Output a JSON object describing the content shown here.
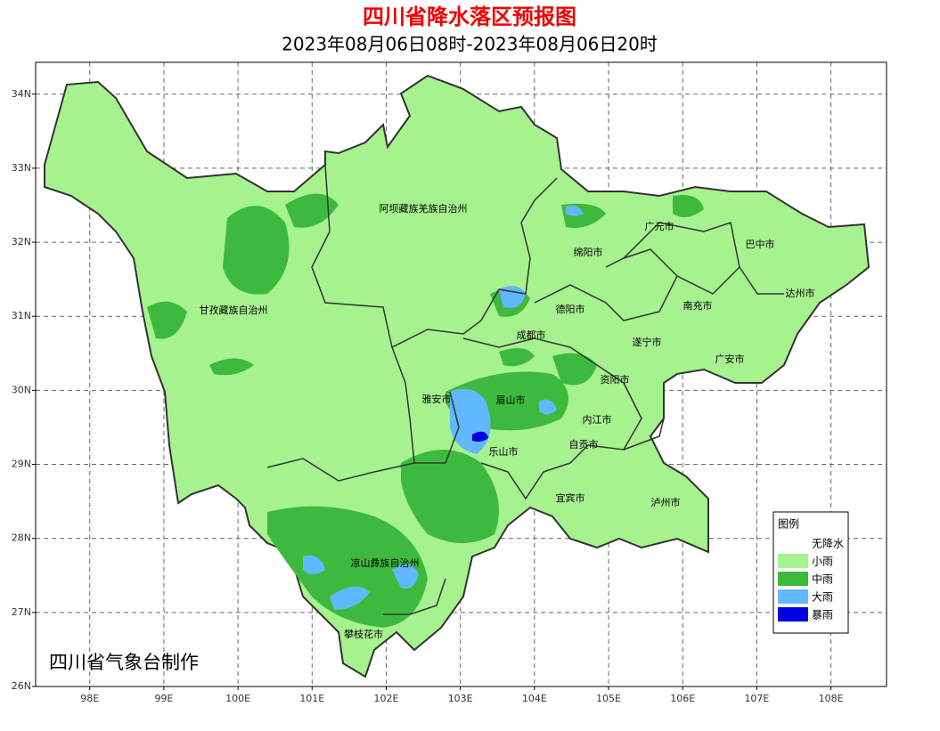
{
  "header": {
    "title": "四川省降水落区预报图",
    "subtitle": "2023年08月06日08时-2023年08月06日20时"
  },
  "map": {
    "xlim": [
      97.27,
      108.75
    ],
    "ylim": [
      26,
      34.43
    ],
    "grid": true,
    "xticks": [
      {
        "value": 98,
        "label": "98E"
      },
      {
        "value": 99,
        "label": "99E"
      },
      {
        "value": 100,
        "label": "100E"
      },
      {
        "value": 101,
        "label": "101E"
      },
      {
        "value": 102,
        "label": "102E"
      },
      {
        "value": 103,
        "label": "103E"
      },
      {
        "value": 104,
        "label": "104E"
      },
      {
        "value": 105,
        "label": "105E"
      },
      {
        "value": 106,
        "label": "106E"
      },
      {
        "value": 107,
        "label": "107E"
      },
      {
        "value": 108,
        "label": "108E"
      }
    ],
    "yticks": [
      {
        "value": 26,
        "label": "26N"
      },
      {
        "value": 27,
        "label": "27N"
      },
      {
        "value": 28,
        "label": "28N"
      },
      {
        "value": 29,
        "label": "29N"
      },
      {
        "value": 30,
        "label": "30N"
      },
      {
        "value": 31,
        "label": "31N"
      },
      {
        "value": 32,
        "label": "32N"
      },
      {
        "value": 33,
        "label": "33N"
      },
      {
        "value": 34,
        "label": "34N"
      }
    ],
    "regions": [
      "阿坝藏族羌族自治州",
      "甘孜藏族自治州",
      "广元市",
      "巴中市",
      "绵阳市",
      "达州市",
      "德阳市",
      "南充市",
      "成都市",
      "遂宁市",
      "广安市",
      "资阳市",
      "雅安市",
      "眉山市",
      "内江市",
      "自贡市",
      "乐山市",
      "宜宾市",
      "泸州市",
      "凉山彝族自治州",
      "攀枝花市"
    ]
  },
  "legend": {
    "title": "图例",
    "items": [
      {
        "label": "无降水",
        "color": "#ffffff"
      },
      {
        "label": "小雨",
        "color": "#a6f28f"
      },
      {
        "label": "中雨",
        "color": "#3dba3d"
      },
      {
        "label": "大雨",
        "color": "#61b8ff"
      },
      {
        "label": "暴雨",
        "color": "#0000e1"
      }
    ]
  },
  "credit": "四川省气象台制作"
}
